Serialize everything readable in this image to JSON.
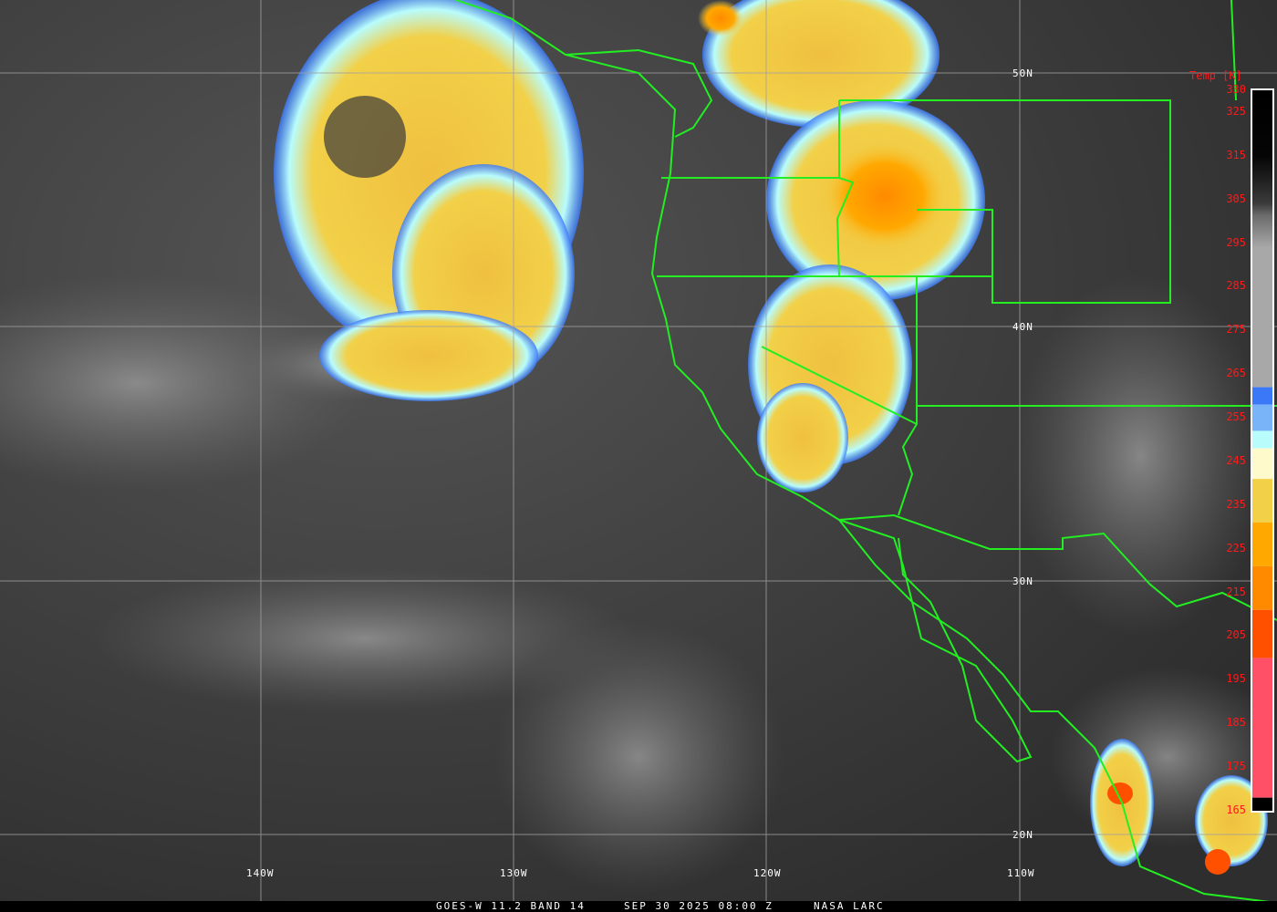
{
  "footer": {
    "satellite": "GOES-W 11.2 BAND 14",
    "datetime": "SEP 30 2025 08:00 Z",
    "credit": "NASA LARC"
  },
  "colorbar": {
    "title": "Temp [K]",
    "ticks": [
      "330",
      "325",
      "315",
      "305",
      "295",
      "285",
      "275",
      "265",
      "255",
      "245",
      "235",
      "225",
      "215",
      "205",
      "195",
      "185",
      "175",
      "165"
    ],
    "range_k": [
      165,
      330
    ],
    "colors": {
      "cold_black": "#000000",
      "pink": "#ff5068",
      "red_orange": "#ff5000",
      "dark_orange": "#ff8a00",
      "orange": "#ffa800",
      "yellow": "#f2d048",
      "pale_yellow": "#fffacc",
      "cyan": "#b8fcfc",
      "light_blue": "#7ab4f8",
      "blue": "#3a78f8"
    }
  },
  "grid": {
    "lon_labels": [
      "140W",
      "130W",
      "120W",
      "110W"
    ],
    "lat_labels": [
      "50N",
      "40N",
      "30N",
      "20N"
    ]
  },
  "colors": {
    "borders": "#22ee22",
    "gridlines": "#a0a0a0"
  }
}
